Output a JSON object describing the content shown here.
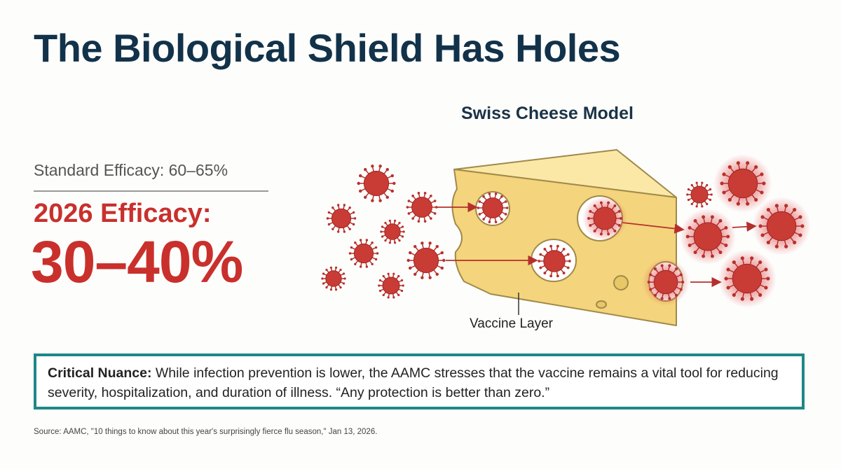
{
  "title": "The Biological Shield Has Holes",
  "diagram": {
    "title": "Swiss Cheese Model",
    "layer_label": "Vaccine Layer"
  },
  "efficacy": {
    "standard": "Standard Efficacy: 60–65%",
    "current_label": "2026 Efficacy:",
    "current_value": "30–40%"
  },
  "callout": {
    "lead": "Critical Nuance:",
    "text": " While infection prevention is lower, the AAMC stresses that the vaccine remains a vital tool for reducing severity, hospitalization, and duration of illness. “Any protection is better than zero.”"
  },
  "source": "Source: AAMC, \"10 things to know about this year's surprisingly fierce flu season,\" Jan 13, 2026.",
  "colors": {
    "title": "#12324a",
    "accent_red": "#c9302c",
    "teal": "#1f8787",
    "cheese": "#f6dc8a"
  }
}
